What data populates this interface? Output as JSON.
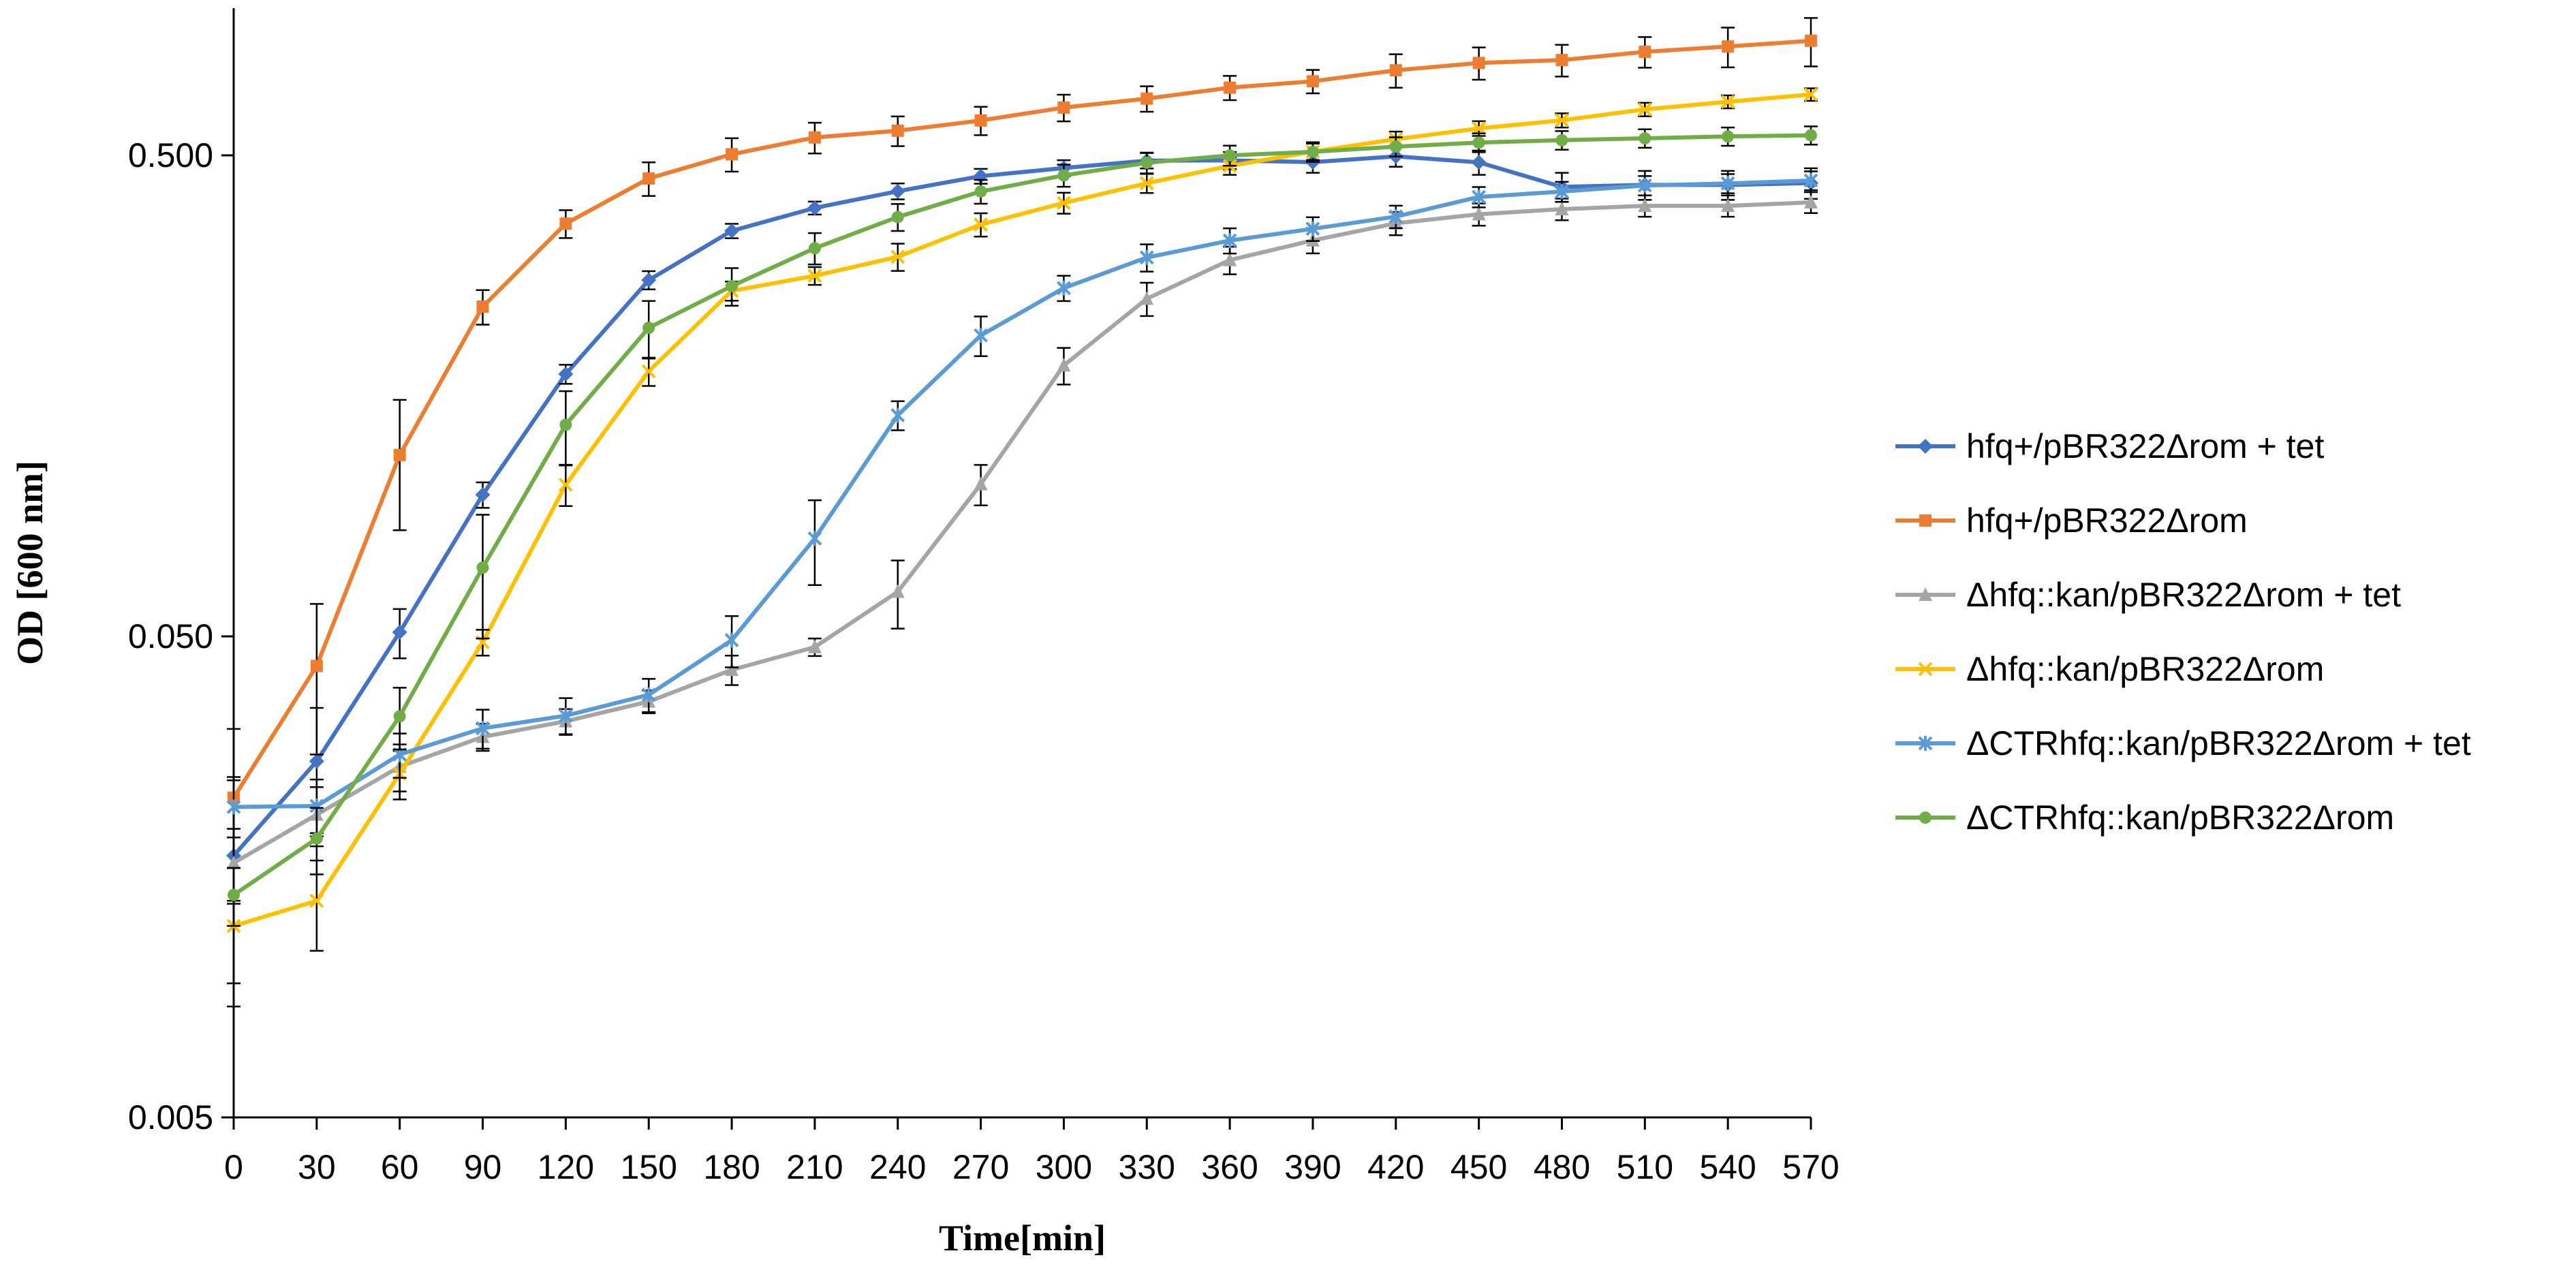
{
  "chart_data": {
    "type": "line",
    "title": "",
    "xlabel": "Time[min]",
    "ylabel": "OD [600 nm]",
    "xlim": [
      0,
      570
    ],
    "ylim": [
      0.005,
      1.0
    ],
    "y_scale": "log",
    "x_ticks": [
      0,
      30,
      60,
      90,
      120,
      150,
      180,
      210,
      240,
      270,
      300,
      330,
      360,
      390,
      420,
      450,
      480,
      510,
      540,
      570
    ],
    "y_ticks": [
      {
        "value": 0.005,
        "label": "0.005"
      },
      {
        "value": 0.05,
        "label": "0.050"
      },
      {
        "value": 0.5,
        "label": "0.500"
      }
    ],
    "grid": false,
    "legend_position": "right",
    "x": [
      0,
      30,
      60,
      90,
      120,
      150,
      180,
      210,
      240,
      270,
      300,
      330,
      360,
      390,
      420,
      450,
      480,
      510,
      540,
      570
    ],
    "series": [
      {
        "name": "hfq+/pBR322Δrom + tet",
        "color": "#4472C4",
        "marker": "diamond",
        "values": [
          0.0175,
          0.0275,
          0.051,
          0.0985,
          0.1755,
          0.2752,
          0.3483,
          0.3887,
          0.421,
          0.4526,
          0.4705,
          0.4876,
          0.488,
          0.484,
          0.4975,
          0.4835,
          0.43,
          0.434,
          0.434,
          0.438
        ],
        "errors": [
          0.008,
          0.008,
          0.003,
          0.003,
          0.004,
          0.006,
          0.006,
          0.006,
          0.008,
          0.008,
          0.009,
          0.009,
          0.01,
          0.012,
          0.012,
          0.014,
          0.015,
          0.015,
          0.015,
          0.016
        ]
      },
      {
        "name": "hfq+/pBR322Δrom",
        "color": "#ED7D31",
        "marker": "square",
        "values": [
          0.0231,
          0.0434,
          0.1191,
          0.2423,
          0.3606,
          0.4476,
          0.5026,
          0.5446,
          0.5625,
          0.5908,
          0.6284,
          0.656,
          0.6913,
          0.7127,
          0.7512,
          0.7781,
          0.7889,
          0.8207,
          0.8418,
          0.8652
        ],
        "errors": [
          0.009,
          0.015,
          0.018,
          0.01,
          0.012,
          0.018,
          0.02,
          0.02,
          0.02,
          0.02,
          0.02,
          0.02,
          0.02,
          0.02,
          0.03,
          0.03,
          0.03,
          0.03,
          0.04,
          0.05
        ]
      },
      {
        "name": "Δhfq::kan/pBR322Δrom + tet",
        "color": "#A5A5A5",
        "marker": "triangle",
        "values": [
          0.0169,
          0.0213,
          0.0268,
          0.0309,
          0.0333,
          0.0366,
          0.0426,
          0.0475,
          0.0619,
          0.1036,
          0.1829,
          0.2517,
          0.3029,
          0.3328,
          0.3611,
          0.3771,
          0.3865,
          0.3926,
          0.3926,
          0.3992
        ],
        "errors": [
          0.003,
          0.003,
          0.003,
          0.002,
          0.002,
          0.002,
          0.003,
          0.002,
          0.005,
          0.005,
          0.008,
          0.01,
          0.01,
          0.01,
          0.01,
          0.01,
          0.01,
          0.01,
          0.01,
          0.01
        ]
      },
      {
        "name": "Δhfq::kan/pBR322Δrom",
        "color": "#FFC000",
        "marker": "x",
        "values": [
          0.0125,
          0.0141,
          0.0259,
          0.0486,
          0.1033,
          0.1778,
          0.2613,
          0.2809,
          0.3076,
          0.3589,
          0.3981,
          0.4375,
          0.4754,
          0.5089,
          0.5402,
          0.5688,
          0.5913,
          0.6229,
          0.6461,
          0.6691
        ],
        "errors": [
          0.004,
          0.003,
          0.003,
          0.003,
          0.005,
          0.006,
          0.006,
          0.006,
          0.01,
          0.01,
          0.01,
          0.01,
          0.01,
          0.01,
          0.01,
          0.01,
          0.01,
          0.01,
          0.01,
          0.01
        ]
      },
      {
        "name": "ΔCTRhfq::kan/pBR322Δrom + tet",
        "color": "#5B9BD5",
        "marker": "star",
        "values": [
          0.0221,
          0.0222,
          0.0284,
          0.0322,
          0.0342,
          0.0378,
          0.0491,
          0.0799,
          0.1441,
          0.2112,
          0.2649,
          0.3066,
          0.3325,
          0.3518,
          0.3729,
          0.4097,
          0.4204,
          0.4328,
          0.4371,
          0.4432
        ],
        "errors": [
          0.003,
          0.003,
          0.003,
          0.003,
          0.003,
          0.003,
          0.006,
          0.008,
          0.005,
          0.01,
          0.008,
          0.01,
          0.01,
          0.01,
          0.01,
          0.01,
          0.01,
          0.01,
          0.01,
          0.01
        ]
      },
      {
        "name": "ΔCTRhfq::kan/pBR322Δrom",
        "color": "#70AD47",
        "marker": "circle",
        "values": [
          0.0145,
          0.019,
          0.0341,
          0.0695,
          0.1377,
          0.219,
          0.2674,
          0.3206,
          0.3722,
          0.4206,
          0.4542,
          0.4826,
          0.4998,
          0.5085,
          0.5212,
          0.5315,
          0.5376,
          0.5424,
          0.5474,
          0.5503
        ],
        "errors": [
          0.002,
          0.003,
          0.005,
          0.01,
          0.012,
          0.015,
          0.012,
          0.012,
          0.012,
          0.012,
          0.012,
          0.012,
          0.012,
          0.012,
          0.012,
          0.012,
          0.012,
          0.012,
          0.012,
          0.012
        ]
      }
    ]
  }
}
